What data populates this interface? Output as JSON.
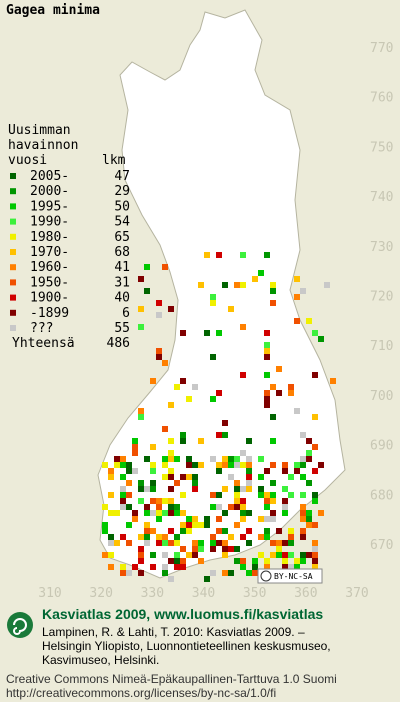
{
  "title": "Gagea minima",
  "legend": {
    "heading": [
      "Uusimman",
      "havainnon",
      "vuosi"
    ],
    "count_heading": "lkm",
    "rows": [
      {
        "label": "2005-",
        "count": 47,
        "color": "#006400"
      },
      {
        "label": "2000-",
        "count": 29,
        "color": "#009600"
      },
      {
        "label": "1995-",
        "count": 50,
        "color": "#00c800"
      },
      {
        "label": "1990-",
        "count": 54,
        "color": "#3cf03c"
      },
      {
        "label": "1980-",
        "count": 65,
        "color": "#f0f000"
      },
      {
        "label": "1970-",
        "count": 68,
        "color": "#ffc000"
      },
      {
        "label": "1960-",
        "count": 41,
        "color": "#ff8000"
      },
      {
        "label": "1950-",
        "count": 31,
        "color": "#f05000"
      },
      {
        "label": "1900-",
        "count": 40,
        "color": "#d00000"
      },
      {
        "label": "-1899",
        "count": 6,
        "color": "#800000"
      },
      {
        "label": "???",
        "count": 55,
        "color": "#c8c8c8"
      }
    ],
    "total": {
      "label": "Yhteensä",
      "count": 486
    }
  },
  "axes": {
    "yticks": [
      770,
      760,
      750,
      740,
      730,
      720,
      710,
      700,
      690,
      680,
      670
    ],
    "xticks": [
      310,
      320,
      330,
      340,
      350,
      360,
      370
    ]
  },
  "license_badge": "BY-NC-SA",
  "footer": {
    "heading": "Kasviatlas 2009, www.luomus.fi/kasviatlas",
    "citation": [
      "Lampinen, R. & Lahti, T. 2010: Kasviatlas 2009. –",
      "Helsingin Yliopisto, Luonnontieteellinen keskusmuseo,",
      "Kasvimuseo, Helsinki."
    ],
    "license": [
      "Creative Commons Nimeä-Epäkaupallinen-Tarttuva 1.0 Suomi",
      "http://creativecommons.org/licenses/by-nc-sa/1.0/fi"
    ]
  }
}
